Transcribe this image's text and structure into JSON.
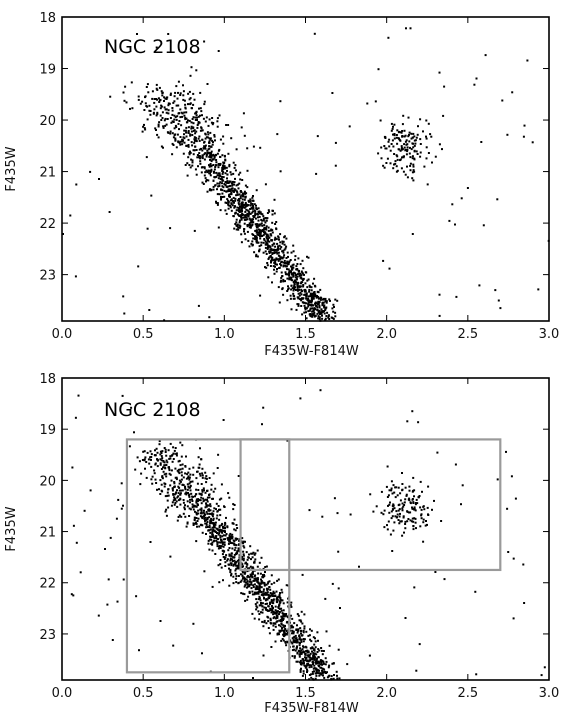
{
  "chart_data": [
    {
      "type": "scatter",
      "title": "NGC 2108",
      "xlabel": "F435W-F814W",
      "ylabel": "F435W",
      "xlim": [
        0.0,
        3.0
      ],
      "ylim": [
        23.9,
        18.0
      ],
      "y_inverted": true,
      "x_ticks": [
        "0.0",
        "0.5",
        "1.0",
        "1.5",
        "2.0",
        "2.5",
        "3.0"
      ],
      "y_ticks": [
        "18",
        "19",
        "20",
        "21",
        "22",
        "23"
      ],
      "series": [
        {
          "generated": true,
          "seed": 11,
          "components": [
            {
              "kind": "main_sequence",
              "count": 1500,
              "x_start": 0.6,
              "y_start": 19.4,
              "x_end": 1.62,
              "y_end": 23.9,
              "x_spread": 0.06
            },
            {
              "kind": "red_clump",
              "count": 150,
              "x_center": 2.12,
              "y_center": 20.55,
              "x_sigma": 0.08,
              "y_sigma": 0.27
            },
            {
              "kind": "field",
              "count": 110,
              "x_range": [
                0.0,
                3.0
              ],
              "y_range": [
                18.2,
                23.9
              ]
            }
          ]
        }
      ]
    },
    {
      "type": "scatter",
      "title": "NGC 2108",
      "xlabel": "F435W-F814W",
      "ylabel": "F435W",
      "xlim": [
        0.0,
        3.0
      ],
      "ylim": [
        23.9,
        18.0
      ],
      "y_inverted": true,
      "x_ticks": [
        "0.0",
        "0.5",
        "1.0",
        "1.5",
        "2.0",
        "2.5",
        "3.0"
      ],
      "y_ticks": [
        "18",
        "19",
        "20",
        "21",
        "22",
        "23"
      ],
      "series": [
        {
          "generated": true,
          "seed": 29,
          "components": [
            {
              "kind": "main_sequence",
              "count": 1500,
              "x_start": 0.6,
              "y_start": 19.4,
              "x_end": 1.62,
              "y_end": 23.9,
              "x_spread": 0.06
            },
            {
              "kind": "red_clump",
              "count": 150,
              "x_center": 2.12,
              "y_center": 20.55,
              "x_sigma": 0.08,
              "y_sigma": 0.27
            },
            {
              "kind": "field",
              "count": 110,
              "x_range": [
                0.0,
                3.0
              ],
              "y_range": [
                18.2,
                23.9
              ]
            }
          ]
        }
      ],
      "regions": [
        {
          "x_range": [
            0.4,
            1.4
          ],
          "y_range": [
            19.2,
            23.75
          ],
          "color": "#9a9a9a"
        },
        {
          "x_range": [
            1.1,
            2.7
          ],
          "y_range": [
            19.2,
            21.75
          ],
          "color": "#9a9a9a"
        }
      ]
    }
  ]
}
